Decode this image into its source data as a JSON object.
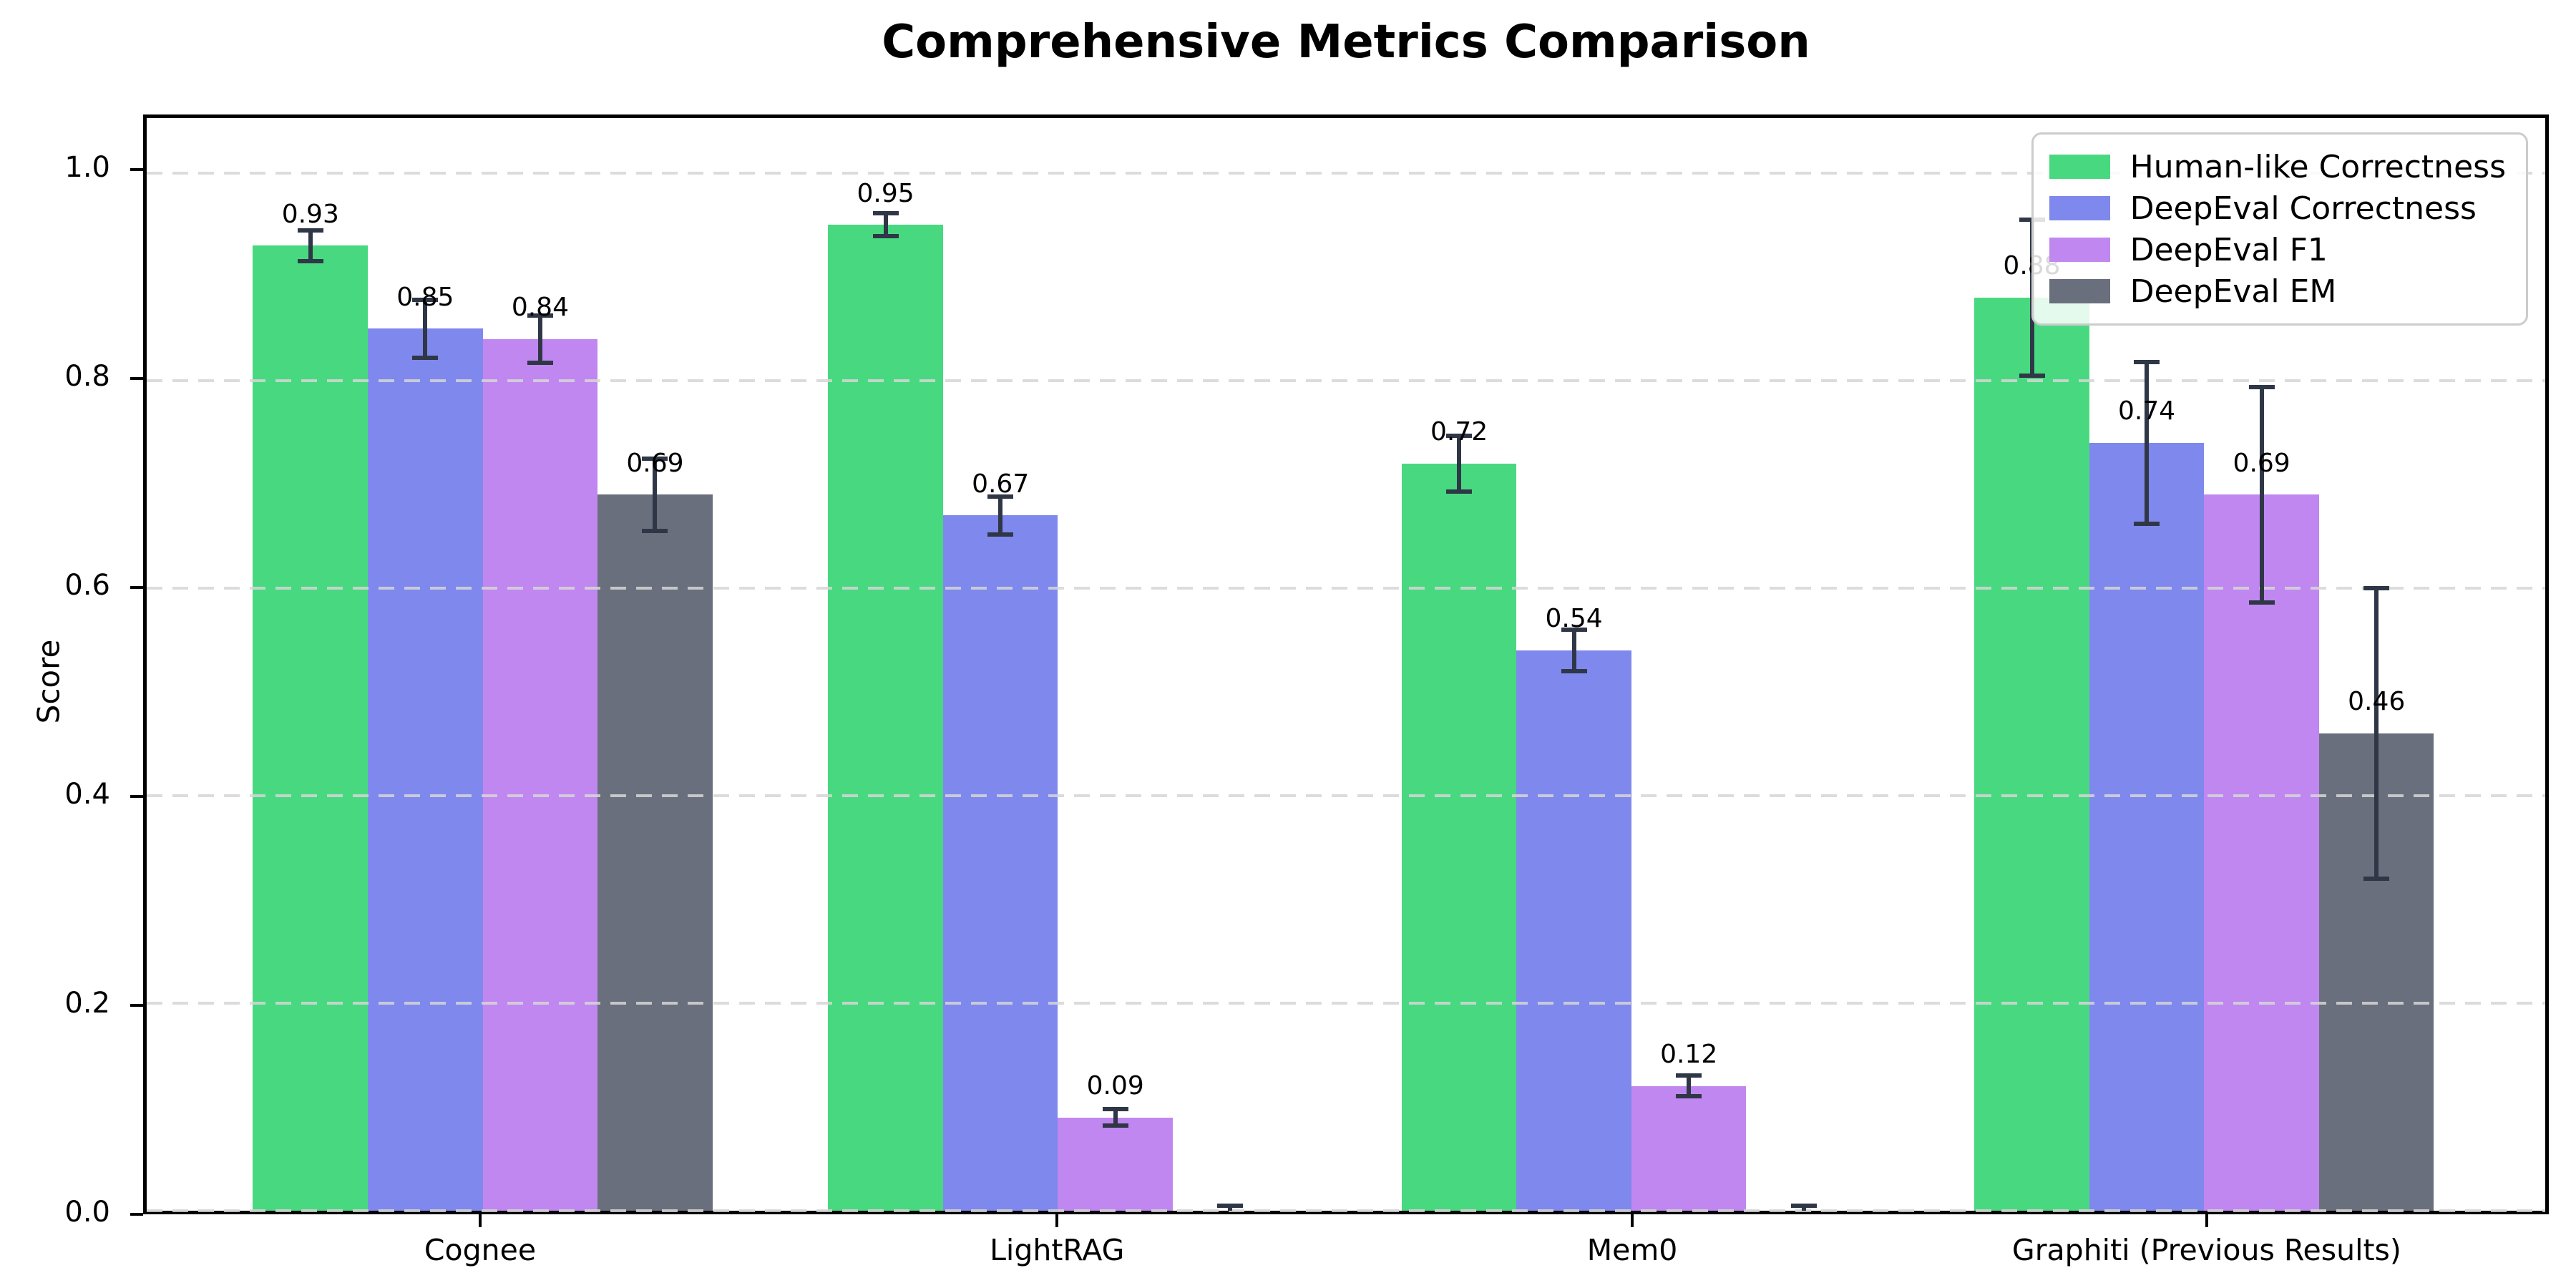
{
  "chart_data": {
    "type": "bar",
    "title": "Comprehensive Metrics Comparison",
    "ylabel": "Score",
    "xlabel": "",
    "categories": [
      "Cognee",
      "LightRAG",
      "Mem0",
      "Graphiti (Previous Results)"
    ],
    "series": [
      {
        "name": "Human-like Correctness",
        "color": "#48d980",
        "values": [
          0.93,
          0.95,
          0.72,
          0.88
        ],
        "errors": [
          0.015,
          0.011,
          0.027,
          0.075
        ],
        "labels": [
          "0.93",
          "0.95",
          "0.72",
          "0.88"
        ]
      },
      {
        "name": "DeepEval Correctness",
        "color": "#7f88ec",
        "values": [
          0.85,
          0.67,
          0.54,
          0.74
        ],
        "errors": [
          0.028,
          0.018,
          0.02,
          0.078
        ],
        "labels": [
          "0.85",
          "0.67",
          "0.54",
          "0.74"
        ]
      },
      {
        "name": "DeepEval F1",
        "color": "#c087f0",
        "values": [
          0.84,
          0.09,
          0.12,
          0.69
        ],
        "errors": [
          0.023,
          0.008,
          0.01,
          0.104
        ],
        "labels": [
          "0.84",
          "0.09",
          "0.12",
          "0.69"
        ]
      },
      {
        "name": "DeepEval EM",
        "color": "#6a6f7d",
        "values": [
          0.69,
          0.0,
          0.0,
          0.46
        ],
        "errors": [
          0.035,
          0.005,
          0.005,
          0.14
        ],
        "labels": [
          "0.69",
          "",
          "",
          "0.46"
        ]
      }
    ],
    "yticks": [
      "0.0",
      "0.2",
      "0.4",
      "0.6",
      "0.8",
      "1.0"
    ],
    "ylim": [
      0,
      1.053
    ],
    "grid": "horizontal-dashed",
    "grid_color": "#d6d6d6",
    "error_bar_color": "#2f3747",
    "legend_position": "upper right",
    "value_label_offset": 0.03
  }
}
